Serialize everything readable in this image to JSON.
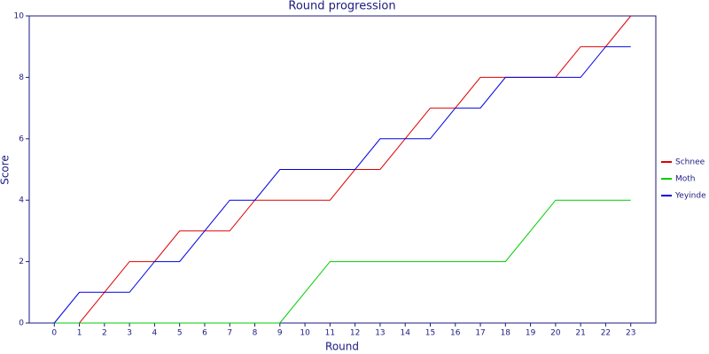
{
  "chart_data": {
    "type": "line",
    "title": "Round progression",
    "x_label": "Round",
    "y_label": "Score",
    "x": [
      0,
      1,
      2,
      3,
      4,
      5,
      6,
      7,
      8,
      9,
      10,
      11,
      12,
      13,
      14,
      15,
      16,
      17,
      18,
      19,
      20,
      21,
      22,
      23
    ],
    "series": [
      {
        "name": "Schnee",
        "color": "#e00000",
        "values": [
          0,
          0,
          1,
          2,
          2,
          3,
          3,
          3,
          4,
          4,
          4,
          4,
          5,
          5,
          6,
          7,
          7,
          8,
          8,
          8,
          8,
          9,
          9,
          10
        ]
      },
      {
        "name": "Moth",
        "color": "#00cc00",
        "values": [
          0,
          0,
          0,
          0,
          0,
          0,
          0,
          0,
          0,
          0,
          1,
          2,
          2,
          2,
          2,
          2,
          2,
          2,
          2,
          3,
          4,
          4,
          4,
          4
        ]
      },
      {
        "name": "Yeyinde",
        "color": "#0000e0",
        "values": [
          0,
          1,
          1,
          1,
          2,
          2,
          3,
          4,
          4,
          5,
          5,
          5,
          5,
          6,
          6,
          6,
          7,
          7,
          8,
          8,
          8,
          8,
          9,
          9
        ]
      }
    ],
    "xlim": [
      -1,
      24
    ],
    "xticks": [
      0,
      1,
      2,
      3,
      4,
      5,
      6,
      7,
      8,
      9,
      10,
      11,
      12,
      13,
      14,
      15,
      16,
      17,
      18,
      19,
      20,
      21,
      22,
      23
    ],
    "ylim": [
      0,
      10
    ],
    "yticks": [
      0,
      2,
      4,
      6,
      8,
      10
    ],
    "legend": "right"
  }
}
